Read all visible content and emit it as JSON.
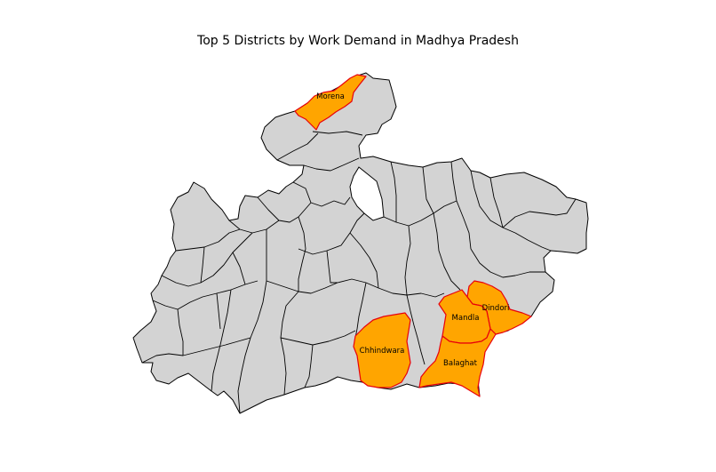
{
  "map": {
    "title": "Top 5 Districts by Work Demand in Madhya Pradesh",
    "base_color": "#d3d3d3",
    "highlight_color": "#ffa500",
    "highlight_border_color": "#e8000b",
    "top_districts": [
      "Morena",
      "Dindori",
      "Mandla",
      "Chhindwara",
      "Balaghat"
    ]
  }
}
